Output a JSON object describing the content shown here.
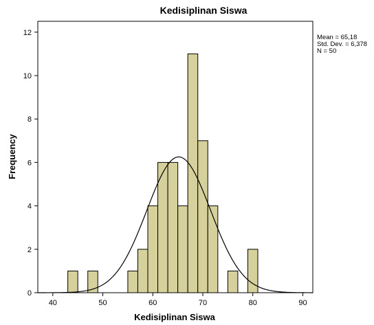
{
  "chart_data": {
    "type": "bar",
    "title": "Kedisiplinan Siswa",
    "xlabel": "Kedisiplinan Siswa",
    "ylabel": "Frequency",
    "xlim": [
      37,
      92
    ],
    "ylim": [
      0,
      12.5
    ],
    "xticks": [
      40,
      50,
      60,
      70,
      80,
      90
    ],
    "yticks": [
      0,
      2,
      4,
      6,
      8,
      10,
      12
    ],
    "bin_width": 2,
    "bins": [
      {
        "start": 43,
        "end": 45,
        "count": 1
      },
      {
        "start": 47,
        "end": 49,
        "count": 1
      },
      {
        "start": 55,
        "end": 57,
        "count": 1
      },
      {
        "start": 57,
        "end": 59,
        "count": 2
      },
      {
        "start": 59,
        "end": 61,
        "count": 4
      },
      {
        "start": 61,
        "end": 63,
        "count": 6
      },
      {
        "start": 63,
        "end": 65,
        "count": 6
      },
      {
        "start": 65,
        "end": 67,
        "count": 4
      },
      {
        "start": 67,
        "end": 69,
        "count": 11
      },
      {
        "start": 69,
        "end": 71,
        "count": 7
      },
      {
        "start": 71,
        "end": 73,
        "count": 4
      },
      {
        "start": 75,
        "end": 77,
        "count": 1
      },
      {
        "start": 79,
        "end": 81,
        "count": 2
      }
    ],
    "normal_curve": {
      "mean": 65.18,
      "sd": 6.378,
      "n": 50
    },
    "stats_labels": [
      "Mean = 65,18",
      "Std. Dev. = 6,378",
      "N = 50"
    ],
    "grid": false,
    "colors": {
      "bar_fill": "#d6d19c",
      "bar_stroke": "#000000",
      "curve": "#000000",
      "plot_bg": "#ffffff"
    }
  }
}
